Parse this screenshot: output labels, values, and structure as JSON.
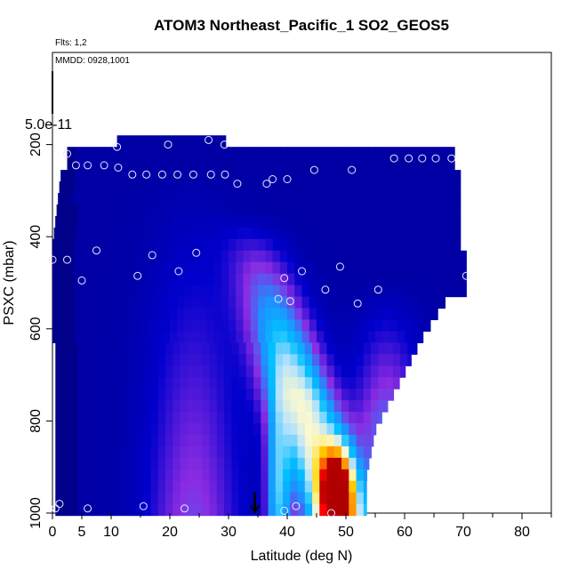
{
  "chart_data": {
    "type": "heatmap",
    "title": "ATOM3 Northeast_Pacific_1 SO2_GEOS5",
    "annotations": {
      "flights": "Flts: 1,2",
      "dates": "MMDD: 0928,1001",
      "scale_label": "5.0e-11"
    },
    "xlabel": "Latitude (deg N)",
    "ylabel": "PSXC (mbar)",
    "xlim": [
      0,
      85
    ],
    "ylim": [
      1000,
      0
    ],
    "x_ticks": [
      0,
      5,
      10,
      20,
      30,
      40,
      50,
      60,
      70,
      80
    ],
    "y_ticks": [
      200,
      400,
      600,
      800,
      1000
    ],
    "colormap": [
      "#00008b",
      "#0000cd",
      "#8a2be2",
      "#1e90ff",
      "#00bfff",
      "#b0e0ff",
      "#fffacd",
      "#ffd700",
      "#ff8c00",
      "#ff0000",
      "#b00000"
    ],
    "observations": [
      {
        "lat": 0.5,
        "p": 990
      },
      {
        "lat": 1.2,
        "p": 980
      },
      {
        "lat": 6,
        "p": 990
      },
      {
        "lat": 15.5,
        "p": 985
      },
      {
        "lat": 22.5,
        "p": 990
      },
      {
        "lat": 39.5,
        "p": 995
      },
      {
        "lat": 41.5,
        "p": 985
      },
      {
        "lat": 47.5,
        "p": 1000
      },
      {
        "lat": 0,
        "p": 450
      },
      {
        "lat": 2.5,
        "p": 450
      },
      {
        "lat": 5,
        "p": 495
      },
      {
        "lat": 7.5,
        "p": 430
      },
      {
        "lat": 14.5,
        "p": 485
      },
      {
        "lat": 17,
        "p": 440
      },
      {
        "lat": 21.5,
        "p": 475
      },
      {
        "lat": 24.5,
        "p": 435
      },
      {
        "lat": 38.5,
        "p": 535
      },
      {
        "lat": 39.5,
        "p": 490
      },
      {
        "lat": 40.5,
        "p": 540
      },
      {
        "lat": 42.5,
        "p": 475
      },
      {
        "lat": 46.5,
        "p": 515
      },
      {
        "lat": 49,
        "p": 465
      },
      {
        "lat": 52,
        "p": 545
      },
      {
        "lat": 55.5,
        "p": 515
      },
      {
        "lat": 70.5,
        "p": 485
      },
      {
        "lat": 2.5,
        "p": 220
      },
      {
        "lat": 4,
        "p": 245
      },
      {
        "lat": 6,
        "p": 245
      },
      {
        "lat": 8.8,
        "p": 245
      },
      {
        "lat": 11,
        "p": 205
      },
      {
        "lat": 11.2,
        "p": 250
      },
      {
        "lat": 13.6,
        "p": 265
      },
      {
        "lat": 16,
        "p": 265
      },
      {
        "lat": 19.7,
        "p": 200
      },
      {
        "lat": 18.7,
        "p": 265
      },
      {
        "lat": 21.3,
        "p": 265
      },
      {
        "lat": 24,
        "p": 265
      },
      {
        "lat": 26.6,
        "p": 190
      },
      {
        "lat": 27,
        "p": 265
      },
      {
        "lat": 29.3,
        "p": 200
      },
      {
        "lat": 29.4,
        "p": 265
      },
      {
        "lat": 31.5,
        "p": 285
      },
      {
        "lat": 36.5,
        "p": 285
      },
      {
        "lat": 37.5,
        "p": 275
      },
      {
        "lat": 40,
        "p": 275
      },
      {
        "lat": 44.6,
        "p": 255
      },
      {
        "lat": 51,
        "p": 255
      },
      {
        "lat": 58.2,
        "p": 230
      },
      {
        "lat": 60.7,
        "p": 230
      },
      {
        "lat": 63,
        "p": 230
      },
      {
        "lat": 65.3,
        "p": 230
      },
      {
        "lat": 68,
        "p": 230
      }
    ],
    "marker_arrow_lat": 34.5,
    "grid": false
  }
}
